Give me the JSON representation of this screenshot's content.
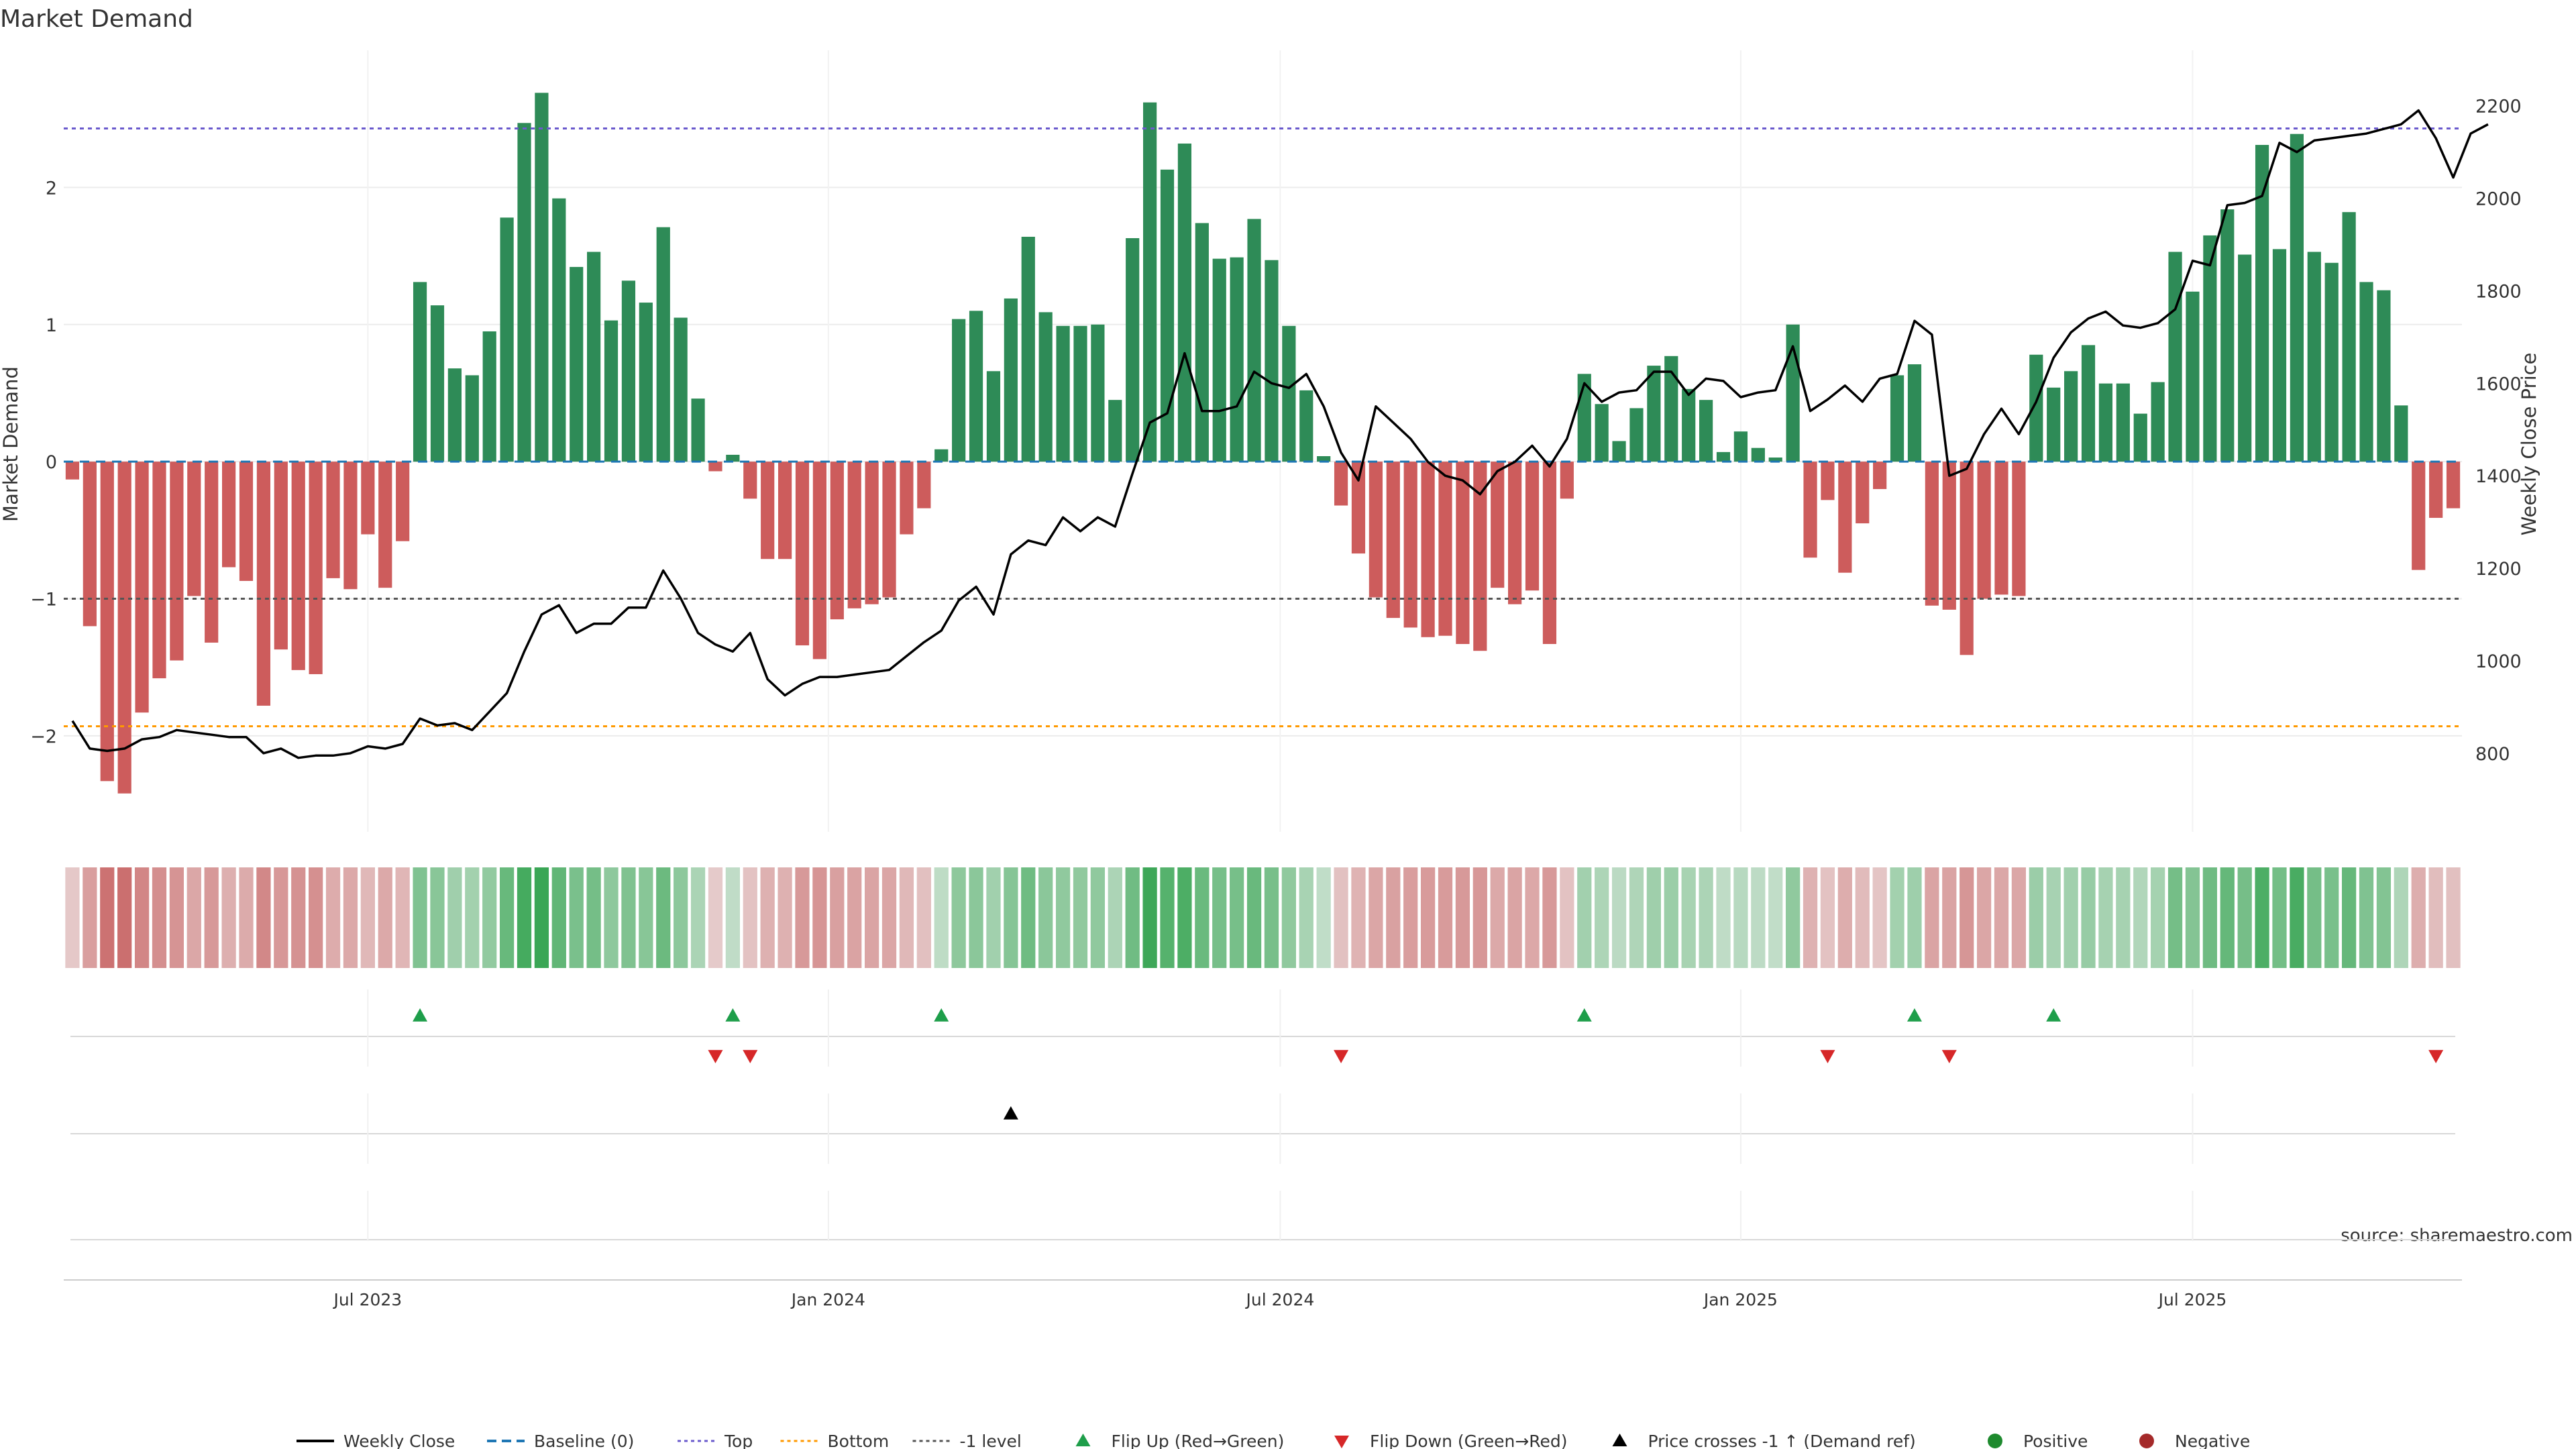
{
  "chart_data": {
    "type": "bar",
    "title": "Market Demand",
    "ylabel_left": "Market Demand",
    "ylabel_right": "Weekly Close Price",
    "ylim_left": [
      -2.7,
      3.0
    ],
    "ylim_right": [
      630,
      2320
    ],
    "yticks_left": [
      {
        "v": -2,
        "label": "−2"
      },
      {
        "v": -1,
        "label": "−1"
      },
      {
        "v": 0,
        "label": "0"
      },
      {
        "v": 1,
        "label": "1"
      },
      {
        "v": 2,
        "label": "2"
      }
    ],
    "yticks_right": [
      {
        "v": 800,
        "label": "800"
      },
      {
        "v": 1000,
        "label": "1000"
      },
      {
        "v": 1200,
        "label": "1200"
      },
      {
        "v": 1400,
        "label": "1400"
      },
      {
        "v": 1600,
        "label": "1600"
      },
      {
        "v": 1800,
        "label": "1800"
      },
      {
        "v": 2000,
        "label": "2000"
      },
      {
        "v": 2200,
        "label": "2200"
      }
    ],
    "xticks": [
      {
        "week": 17,
        "label": "Jul 2023"
      },
      {
        "week": 43.5,
        "label": "Jan 2024"
      },
      {
        "week": 69.5,
        "label": "Jul 2024"
      },
      {
        "week": 96,
        "label": "Jan 2025"
      },
      {
        "week": 122,
        "label": "Jul 2025"
      }
    ],
    "reference_lines": {
      "top": 2.43,
      "bottom": -1.93,
      "minus_one": -1
    },
    "demand": [
      -0.13,
      -1.2,
      -2.33,
      -2.42,
      -1.83,
      -1.58,
      -1.45,
      -0.98,
      -1.32,
      -0.77,
      -0.87,
      -1.78,
      -1.37,
      -1.52,
      -1.55,
      -0.85,
      -0.93,
      -0.53,
      -0.92,
      -0.58,
      1.31,
      1.14,
      0.68,
      0.63,
      0.95,
      1.78,
      2.47,
      2.69,
      1.92,
      1.42,
      1.53,
      1.03,
      1.32,
      1.16,
      1.71,
      1.05,
      0.46,
      -0.07,
      0.05,
      -0.27,
      -0.71,
      -0.71,
      -1.34,
      -1.44,
      -1.15,
      -1.07,
      -1.04,
      -0.99,
      -0.53,
      -0.34,
      0.09,
      1.04,
      1.1,
      0.66,
      1.19,
      1.64,
      1.09,
      0.99,
      0.99,
      1.0,
      0.45,
      1.63,
      2.62,
      2.13,
      2.32,
      1.74,
      1.48,
      1.49,
      1.77,
      1.47,
      0.99,
      0.52,
      0.04,
      -0.32,
      -0.67,
      -0.99,
      -1.14,
      -1.21,
      -1.28,
      -1.27,
      -1.33,
      -1.38,
      -0.92,
      -1.04,
      -0.94,
      -1.33,
      -0.27,
      0.64,
      0.42,
      0.15,
      0.39,
      0.7,
      0.77,
      0.53,
      0.45,
      0.07,
      0.22,
      0.1,
      0.03,
      1.0,
      -0.7,
      -0.28,
      -0.81,
      -0.45,
      -0.2,
      0.63,
      0.71,
      -1.05,
      -1.08,
      -1.41,
      -1.0,
      -0.97,
      -0.98,
      0.78,
      0.54,
      0.66,
      0.85,
      0.57,
      0.57,
      0.35,
      0.58,
      1.53,
      1.24,
      1.65,
      1.84,
      1.51,
      2.31,
      1.55,
      2.39,
      1.53,
      1.45,
      1.82,
      1.31,
      1.25,
      0.41,
      -0.79,
      -0.41,
      -0.34
    ],
    "weekly_close": [
      870,
      810,
      805,
      810,
      830,
      835,
      850,
      845,
      840,
      835,
      835,
      800,
      810,
      790,
      795,
      795,
      800,
      815,
      810,
      820,
      875,
      860,
      865,
      850,
      890,
      930,
      1020,
      1100,
      1120,
      1060,
      1080,
      1080,
      1115,
      1115,
      1195,
      1135,
      1060,
      1035,
      1020,
      1060,
      960,
      925,
      950,
      965,
      965,
      970,
      975,
      980,
      1010,
      1040,
      1065,
      1130,
      1160,
      1100,
      1230,
      1260,
      1250,
      1310,
      1280,
      1310,
      1290,
      1405,
      1515,
      1535,
      1665,
      1540,
      1540,
      1550,
      1625,
      1600,
      1590,
      1620,
      1550,
      1450,
      1390,
      1550,
      1515,
      1480,
      1430,
      1400,
      1390,
      1360,
      1410,
      1430,
      1465,
      1420,
      1480,
      1600,
      1560,
      1580,
      1585,
      1625,
      1625,
      1575,
      1610,
      1605,
      1570,
      1580,
      1585,
      1680,
      1540,
      1565,
      1595,
      1560,
      1610,
      1620,
      1735,
      1705,
      1400,
      1415,
      1490,
      1545,
      1490,
      1560,
      1655,
      1710,
      1740,
      1755,
      1725,
      1720,
      1730,
      1760,
      1865,
      1855,
      1985,
      1990,
      2005,
      2120,
      2100,
      2125,
      2130,
      2135,
      2140,
      2150,
      2160,
      2190,
      2130,
      2045,
      2140,
      2160
    ],
    "heat_strip": "color of each week follows the Market Demand value (green positive, red negative)",
    "flip_up_weeks": [
      20,
      38,
      50,
      87,
      106,
      114
    ],
    "flip_down_weeks": [
      37,
      39,
      73,
      101,
      108,
      136
    ],
    "price_cross_weeks": [
      54
    ],
    "annotation": "source: sharemaestro.com",
    "legend": [
      {
        "label": "Weekly Close",
        "marker": "solid-line",
        "color": "#000000"
      },
      {
        "label": "Baseline (0)",
        "marker": "dashed-line",
        "color": "#1f77b4"
      },
      {
        "label": "Top",
        "marker": "dotted-line",
        "color": "#6a5acd"
      },
      {
        "label": "Bottom",
        "marker": "dotted-line",
        "color": "#ff9900"
      },
      {
        "label": "-1 level",
        "marker": "dotted-line",
        "color": "#555555"
      },
      {
        "label": "Flip Up (Red→Green)",
        "marker": "triangle-up",
        "color": "#1e9e4a"
      },
      {
        "label": "Flip Down (Green→Red)",
        "marker": "triangle-down",
        "color": "#d62728"
      },
      {
        "label": "Price crosses -1 ↑ (Demand ref)",
        "marker": "triangle-up",
        "color": "#000000"
      },
      {
        "label": "Positive",
        "marker": "circle",
        "color": "#1e8a2e"
      },
      {
        "label": "Negative",
        "marker": "circle",
        "color": "#a52a2a"
      }
    ],
    "legend_position": "bottom-center",
    "grid": true
  },
  "colors": {
    "positive_bar": "#2e8b57",
    "negative_bar": "#cd5c5c",
    "price_line": "#000000",
    "baseline": "#1f77b4",
    "top_line": "#6a5acd",
    "bottom_line": "#ff9900",
    "minus_one_line": "#555555",
    "flip_up": "#1e9e4a",
    "flip_down": "#d62728",
    "price_cross": "#000000"
  }
}
